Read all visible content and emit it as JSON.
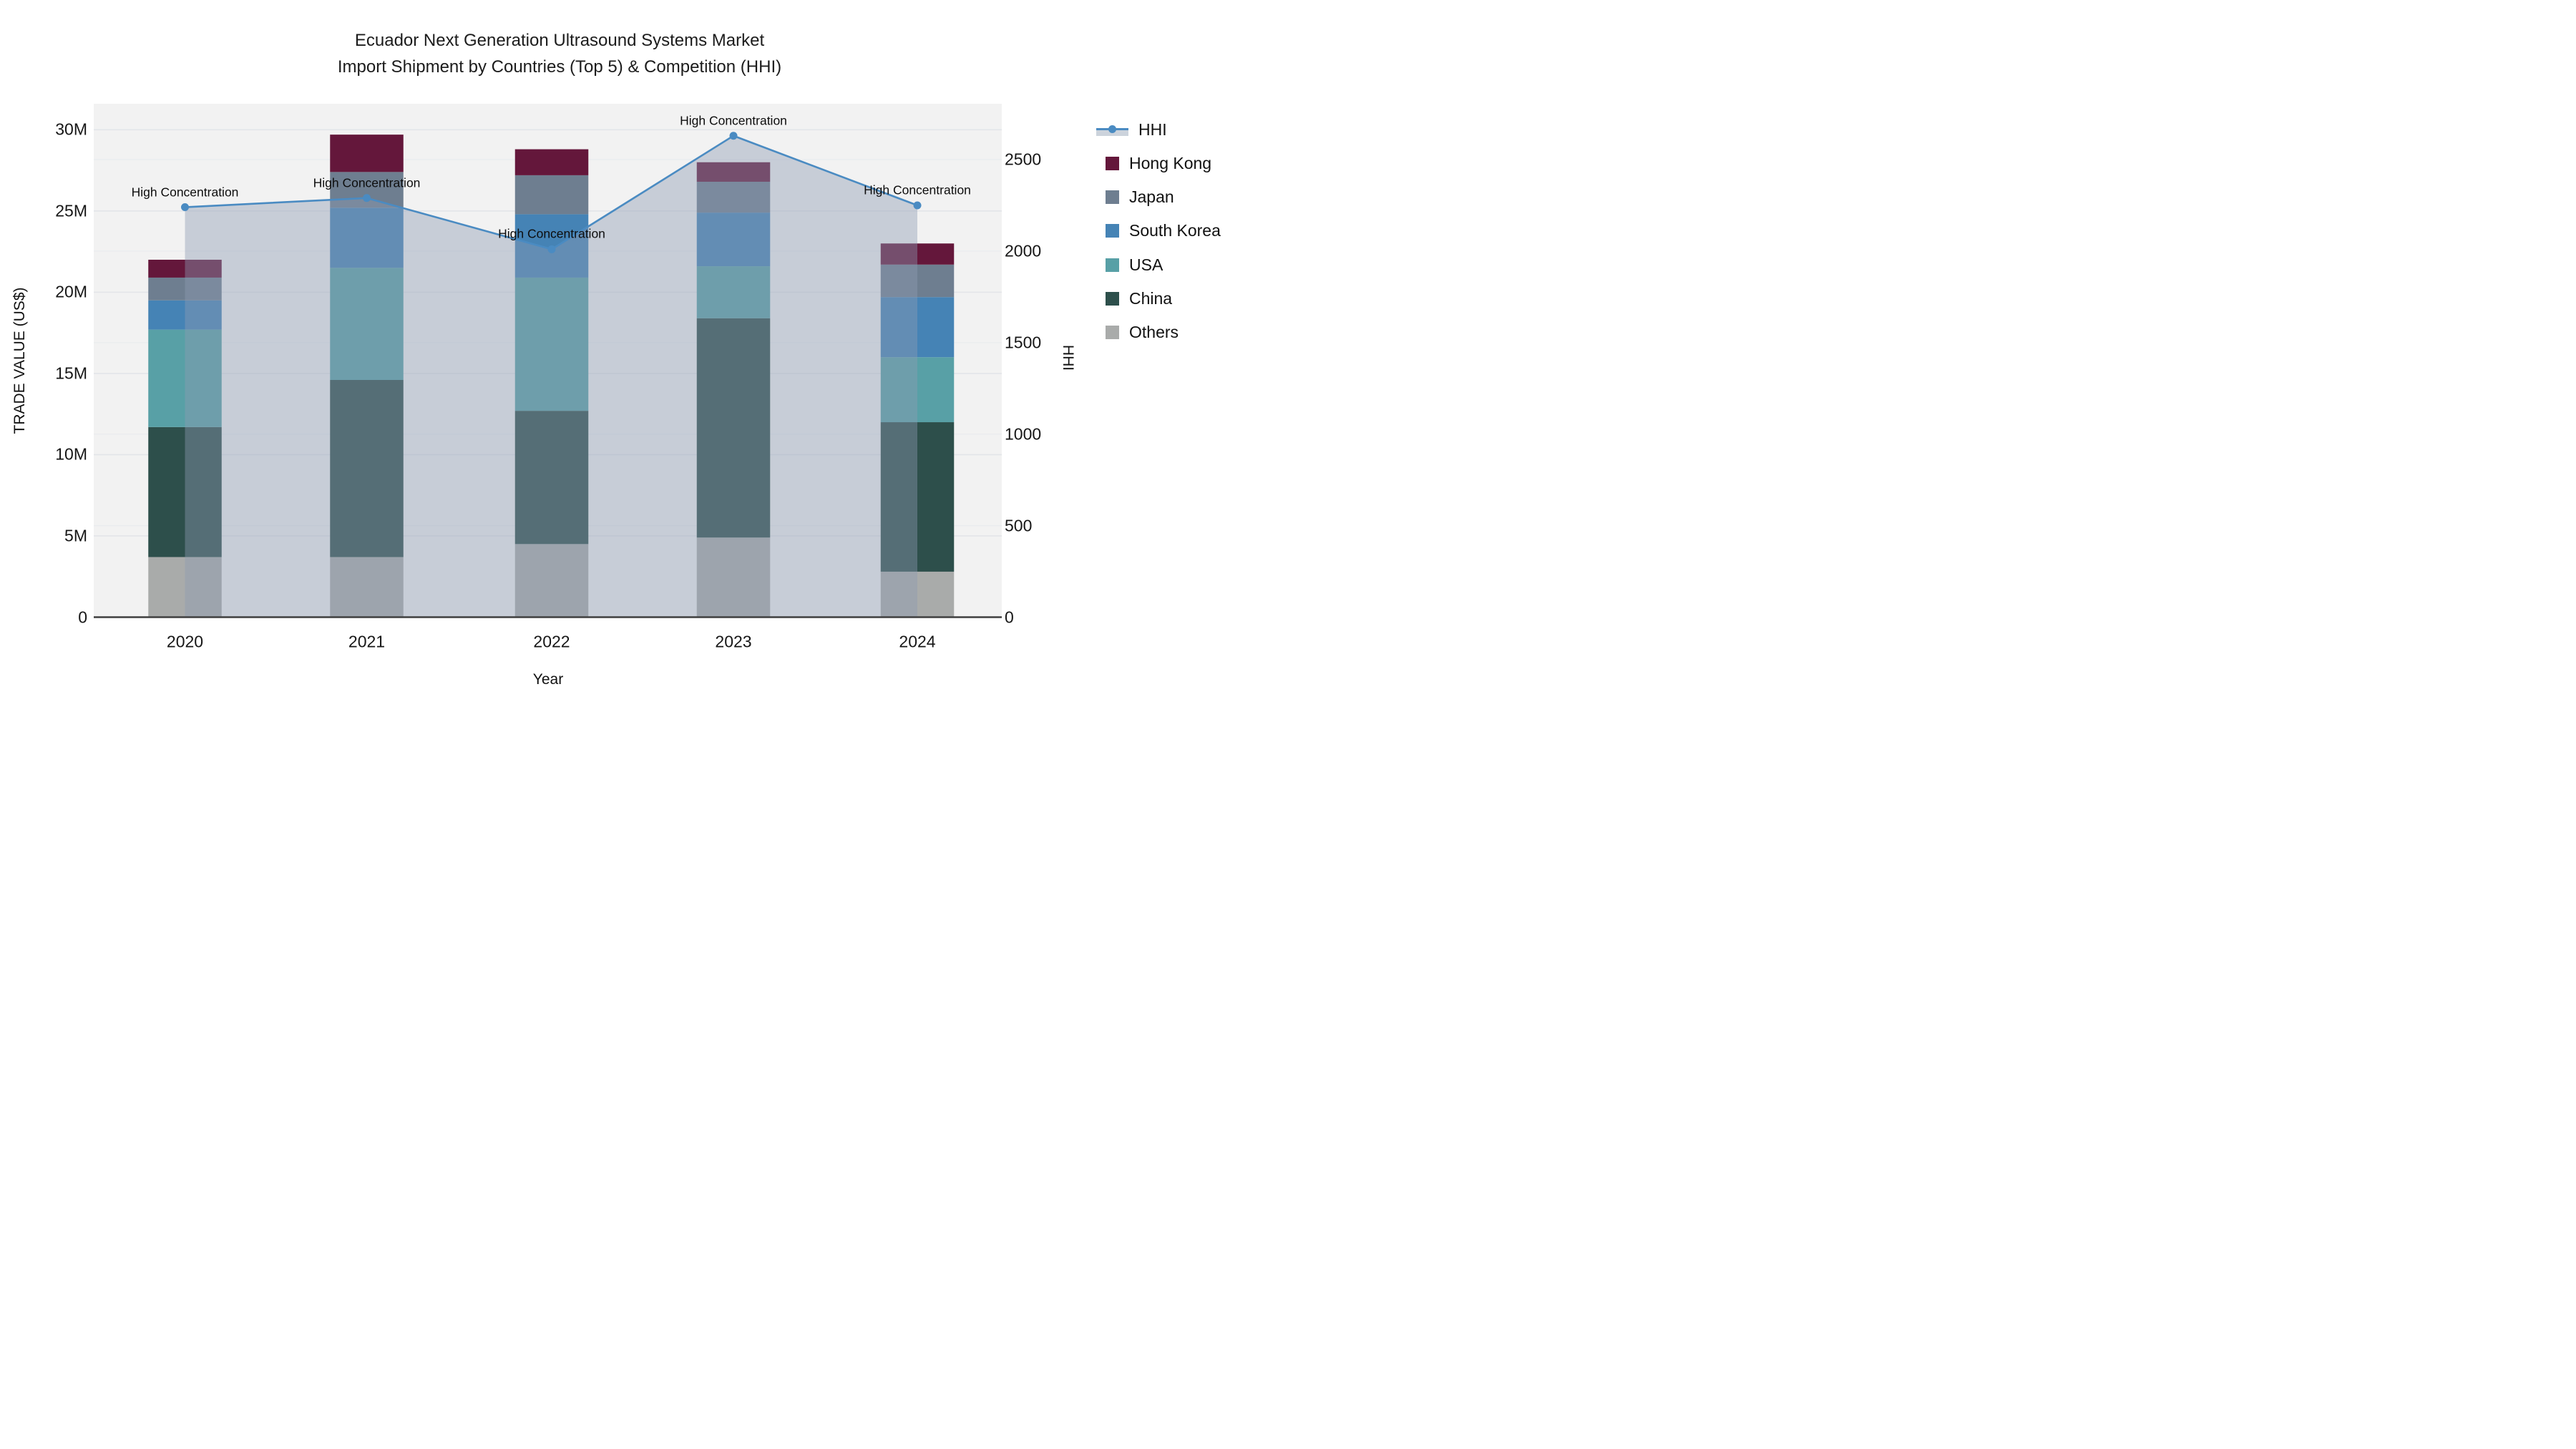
{
  "chart_data": {
    "type": "bar",
    "title": "Ecuador Next Generation Ultrasound Systems Market",
    "subtitle": "Import Shipment by Countries (Top 5) & Competition (HHI)",
    "xlabel": "Year",
    "ylabel": "TRADE VALUE (US$)",
    "y2label": "HHI",
    "categories": [
      "2020",
      "2021",
      "2022",
      "2023",
      "2024"
    ],
    "unit": "million US$",
    "stack_order_note": "bottom to top",
    "series": [
      {
        "name": "Others",
        "color": "#A9ABAA",
        "values": [
          3.7,
          3.7,
          4.5,
          4.9,
          2.8
        ]
      },
      {
        "name": "China",
        "color": "#2D4F4B",
        "values": [
          8.0,
          10.9,
          8.2,
          13.5,
          9.2
        ]
      },
      {
        "name": "USA",
        "color": "#58A0A6",
        "values": [
          6.0,
          6.9,
          8.2,
          3.2,
          4.0
        ]
      },
      {
        "name": "South Korea",
        "color": "#4583B5",
        "values": [
          1.8,
          3.7,
          3.9,
          3.3,
          3.7
        ]
      },
      {
        "name": "Japan",
        "color": "#6E7E90",
        "values": [
          1.4,
          2.2,
          2.4,
          1.9,
          2.0
        ]
      },
      {
        "name": "Hong Kong",
        "color": "#64173B",
        "values": [
          1.1,
          2.3,
          1.6,
          1.2,
          1.3
        ]
      }
    ],
    "line_series": {
      "name": "HHI",
      "color": "#4A8BC2",
      "fill_color": "rgba(140,155,178,0.42)",
      "values": [
        2240,
        2290,
        2010,
        2630,
        2250
      ]
    },
    "annotations": [
      "High Concentration",
      "High Concentration",
      "High Concentration",
      "High Concentration",
      "High Concentration"
    ],
    "yticks": {
      "labels": [
        "0",
        "5M",
        "10M",
        "15M",
        "20M",
        "25M",
        "30M"
      ],
      "values": [
        0,
        5,
        10,
        15,
        20,
        25,
        30
      ]
    },
    "y2ticks": {
      "labels": [
        "0",
        "500",
        "1000",
        "1500",
        "2000",
        "2500"
      ],
      "values": [
        0,
        500,
        1000,
        1500,
        2000,
        2500
      ]
    },
    "ylim": [
      0,
      31.6
    ],
    "y2lim": [
      0,
      2805
    ],
    "grid": true,
    "legend_position": "right",
    "legend": [
      "HHI",
      "Hong Kong",
      "Japan",
      "South Korea",
      "USA",
      "China",
      "Others"
    ],
    "colors": {
      "plot_bg": "#F2F2F2",
      "grid_major": "#E3E5E9",
      "grid_minor": "#E9EBEE",
      "axis_line": "#3F3F3F",
      "hhi_line": "#4A8BC2"
    }
  }
}
